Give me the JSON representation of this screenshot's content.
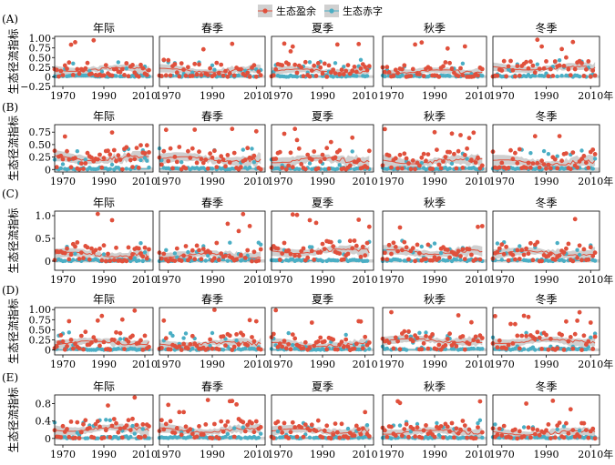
{
  "legend": {
    "surplus": "生态盈余",
    "deficit": "生态赤字"
  },
  "colors": {
    "surplus": "#e0503c",
    "deficit": "#4aaec4",
    "band": "#a8a8a8"
  },
  "x_end_label": "2010年",
  "chart_data": {
    "type": "scatter",
    "x_ticks": [
      1970,
      1990,
      2010
    ],
    "xlim": [
      1966,
      2014
    ],
    "row_labels": [
      "(A)",
      "(B)",
      "(C)",
      "(D)",
      "(E)"
    ],
    "panel_titles": [
      "年际",
      "春季",
      "夏季",
      "秋季",
      "冬季"
    ],
    "ylabel": "生态径流指标",
    "rows": [
      {
        "ylim": [
          -0.25,
          1.05
        ],
        "yticks": [
          1.0,
          0.75,
          0.5,
          0.25,
          0,
          -0.25
        ],
        "ytick_labels": [
          "1.00",
          "0.75",
          "0.50",
          "0.25",
          "0",
          "−0.25"
        ]
      },
      {
        "ylim": [
          -0.05,
          0.9
        ],
        "yticks": [
          0.75,
          0.5,
          0.25,
          0
        ],
        "ytick_labels": [
          "0.75",
          "0.50",
          "0.25",
          "0"
        ]
      },
      {
        "ylim": [
          -0.2,
          1.1
        ],
        "yticks": [
          1.0,
          0.5,
          0
        ],
        "ytick_labels": [
          "1.0",
          "0.5",
          "0"
        ]
      },
      {
        "ylim": [
          -0.12,
          1.05
        ],
        "yticks": [
          1.0,
          0.75,
          0.5,
          0.25,
          0
        ],
        "ytick_labels": [
          "1.00",
          "0.75",
          "0.50",
          "0.25",
          "0"
        ]
      },
      {
        "ylim": [
          -0.15,
          1.0
        ],
        "yticks": [
          0.8,
          0.4,
          0
        ],
        "ytick_labels": [
          "0.8",
          "0.4",
          "0"
        ]
      }
    ]
  }
}
